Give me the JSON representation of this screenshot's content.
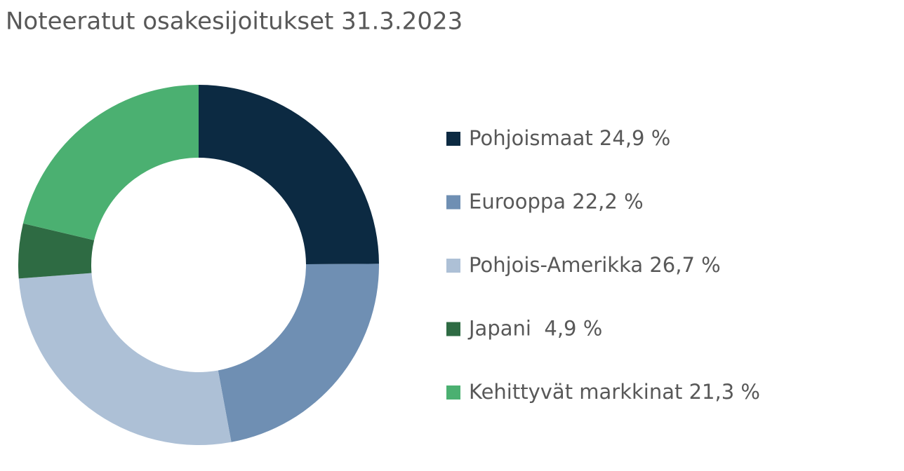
{
  "chart_data": {
    "type": "donut",
    "title": "Noteeratut osakesijoitukset 31.3.2023",
    "categories": [
      "Pohjoismaat 24,9 %",
      "Eurooppa 22,2 %",
      "Pohjois-Amerikka 26,7 %",
      "Japani  4,9 %",
      "Kehittyvät markkinat 21,3 %"
    ],
    "values": [
      24.9,
      22.2,
      26.7,
      4.9,
      21.3
    ],
    "colors": [
      "#0c2a42",
      "#6f8fb3",
      "#adc0d6",
      "#2e6b43",
      "#4bb071"
    ]
  }
}
